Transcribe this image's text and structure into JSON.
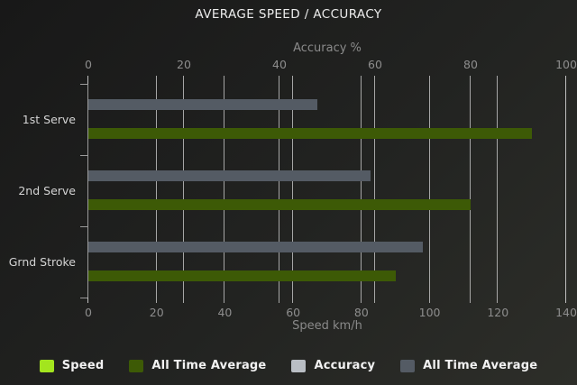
{
  "chart_data": {
    "type": "bar",
    "orientation": "horizontal",
    "title": "AVERAGE SPEED / ACCURACY",
    "categories": [
      "1st Serve",
      "2nd Serve",
      "Grnd Stroke"
    ],
    "axes": {
      "top": {
        "label": "Accuracy %",
        "min": 0,
        "max": 100,
        "ticks": [
          0,
          20,
          40,
          60,
          80,
          100
        ]
      },
      "bottom": {
        "label": "Speed km/h",
        "min": 0,
        "max": 140,
        "ticks": [
          0,
          20,
          40,
          60,
          80,
          100,
          120,
          140
        ]
      }
    },
    "series": [
      {
        "name": "Speed",
        "axis": "bottom",
        "color": "#a3e51e",
        "values": []
      },
      {
        "name": "All Time Average",
        "axis": "bottom",
        "color": "#3d5a06",
        "values": [
          130,
          112,
          90
        ]
      },
      {
        "name": "Accuracy",
        "axis": "top",
        "color": "#b9bec4",
        "values": []
      },
      {
        "name": "All Time Average",
        "axis": "top",
        "color": "#545b64",
        "values": [
          48,
          59,
          70
        ]
      }
    ],
    "legend_position": "bottom",
    "grid": true
  }
}
